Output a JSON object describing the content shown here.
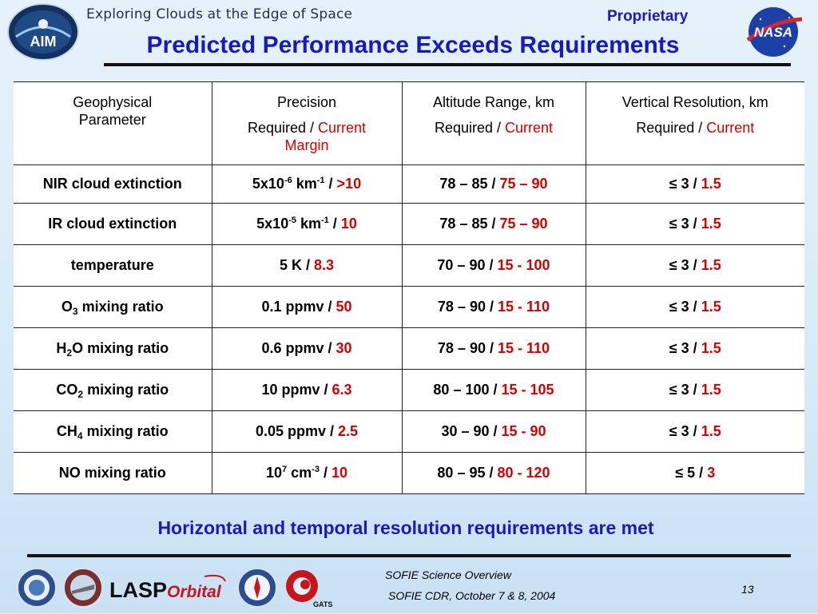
{
  "header": {
    "tagline": "Exploring Clouds at the Edge of Space",
    "aim_logo_text": "AIM",
    "nasa_logo_text": "NASA",
    "proprietary": "Proprietary",
    "title": "Predicted Performance Exceeds Requirements"
  },
  "table": {
    "headers": [
      {
        "line1": "Geophysical",
        "line2": "Parameter"
      },
      {
        "line1": "Precision",
        "req": "Required",
        "sep": " / ",
        "cur": "Current",
        "extra": "Margin"
      },
      {
        "line1": "Altitude Range, km",
        "req": "Required",
        "sep": " / ",
        "cur": "Current"
      },
      {
        "line1": "Vertical Resolution, km",
        "req": "Required",
        "sep": " / ",
        "cur": "Current"
      }
    ],
    "rows": [
      {
        "param": "NIR cloud extinction",
        "precision_base": "5x10",
        "precision_exp": "-6",
        "precision_unit": " km",
        "precision_unit_exp": "-1",
        "precision_sep": " / ",
        "precision_cur": ">10",
        "alt_req": "78 – 85",
        "alt_sep": " / ",
        "alt_cur": "75 – 90",
        "vres_req": "≤ 3",
        "vres_sep": " / ",
        "vres_cur": "1.5"
      },
      {
        "param": "IR cloud extinction",
        "precision_base": "5x10",
        "precision_exp": "-5",
        "precision_unit": " km",
        "precision_unit_exp": "-1",
        "precision_sep": " / ",
        "precision_cur": "10",
        "alt_req": "78 – 85",
        "alt_sep": " / ",
        "alt_cur": "75 – 90",
        "vres_req": "≤ 3",
        "vres_sep": " / ",
        "vres_cur": "1.5"
      },
      {
        "param": "temperature",
        "precision_req": "5 K",
        "precision_sep": " / ",
        "precision_cur": "8.3",
        "alt_req": "70 – 90",
        "alt_sep": " / ",
        "alt_cur": "15 - 100",
        "vres_req": "≤ 3",
        "vres_sep": " / ",
        "vres_cur": "1.5"
      },
      {
        "param_pre": "O",
        "param_sub": "3",
        "param_post": " mixing ratio",
        "precision_req": "0.1 ppmv",
        "precision_sep": " / ",
        "precision_cur": "50",
        "alt_req": "78 – 90",
        "alt_sep": " / ",
        "alt_cur": "15 - 110",
        "vres_req": "≤ 3",
        "vres_sep": " / ",
        "vres_cur": "1.5"
      },
      {
        "param_pre": "H",
        "param_sub": "2",
        "param_post": "O mixing ratio",
        "precision_req": "0.6 ppmv",
        "precision_sep": " / ",
        "precision_cur": "30",
        "alt_req": "78 – 90",
        "alt_sep": " / ",
        "alt_cur": "15 - 110",
        "vres_req": "≤ 3",
        "vres_sep": " / ",
        "vres_cur": "1.5"
      },
      {
        "param_pre": "CO",
        "param_sub": "2",
        "param_post": " mixing ratio",
        "precision_req": "10 ppmv",
        "precision_sep": " / ",
        "precision_cur": "6.3",
        "alt_req": "80 – 100",
        "alt_sep": " / ",
        "alt_cur": "15 - 105",
        "vres_req": "≤ 3",
        "vres_sep": " / ",
        "vres_cur": "1.5"
      },
      {
        "param_pre": "CH",
        "param_sub": "4",
        "param_post": " mixing ratio",
        "precision_req": "0.05 ppmv",
        "precision_sep": " / ",
        "precision_cur": "2.5",
        "alt_req": "30 – 90",
        "alt_sep": " / ",
        "alt_cur": "15 - 90",
        "vres_req": "≤ 3",
        "vres_sep": " / ",
        "vres_cur": "1.5"
      },
      {
        "param": "NO mixing ratio",
        "precision_base": "10",
        "precision_exp": "7",
        "precision_unit": " cm",
        "precision_unit_exp": "-3",
        "precision_sep": " / ",
        "precision_cur": "10",
        "alt_req": "80 – 95",
        "alt_sep": " / ",
        "alt_cur": "80 - 120",
        "vres_req": "≤ 5",
        "vres_sep": " / ",
        "vres_cur": "3"
      }
    ]
  },
  "footnote": "Horizontal and temporal resolution requirements are met",
  "footer": {
    "line1": "SOFIE Science Overview",
    "line2": "SOFIE CDR, October 7 & 8, 2004",
    "page": "13",
    "logos": [
      "seal-logo",
      "hampton-logo",
      "lasp-logo",
      "orbital-logo",
      "compass-logo",
      "gats-logo"
    ],
    "lasp_text": "LASP",
    "orbital_text": "Orbital",
    "gats_text": "GATS"
  },
  "colors": {
    "title_blue": "#1a1ab8",
    "current_red": "#cc0000"
  }
}
